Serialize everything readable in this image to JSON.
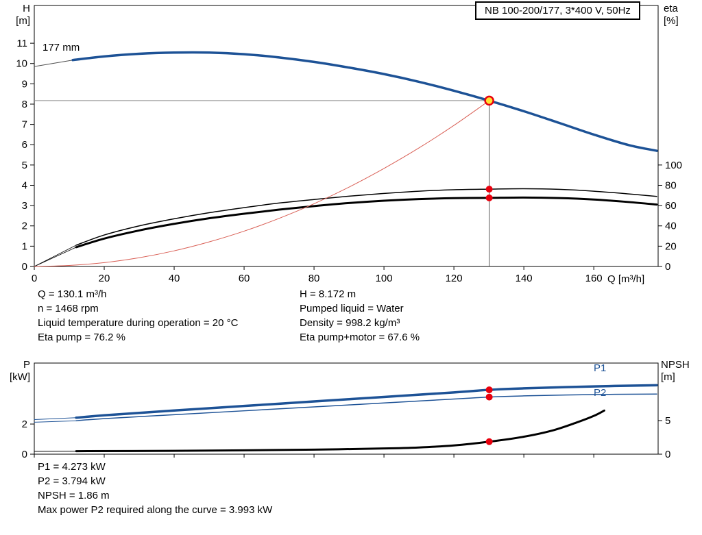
{
  "title_box": {
    "label": "NB 100-200/177, 3*400 V, 50Hz"
  },
  "axis_labels": {
    "head": "H",
    "head_unit": "[m]",
    "eta": "eta",
    "eta_unit": "[%]",
    "flow": "Q [m³/h]",
    "power": "P",
    "power_unit": "[kW]",
    "npsh": "NPSH",
    "npsh_unit": "[m]"
  },
  "impeller_label": "177 mm",
  "curve_labels": {
    "p1": "P1",
    "p2": "P2"
  },
  "colors": {
    "curve_blue": "#1d5296",
    "curve_black": "#000000",
    "system_red": "#d95f55",
    "marker_red": "#e8000d",
    "duty_yellow": "#ffe133",
    "guide_gray": "#8c8c8c"
  },
  "operating_point": {
    "left": [
      "Q = 130.1 m³/h",
      "n = 1468 rpm",
      "Liquid temperature during operation = 20 °C",
      "Eta pump = 76.2 %"
    ],
    "right": [
      "H = 8.172 m",
      "Pumped liquid = Water",
      "Density = 998.2 kg/m³",
      "Eta pump+motor = 67.6 %"
    ]
  },
  "results": [
    "P1 = 4.273 kW",
    "P2 = 3.794 kW",
    "NPSH = 1.86 m",
    "Max power P2 required along the curve = 3.993 kW"
  ],
  "chart_data": [
    {
      "name": "qh-chart",
      "type": "line",
      "title": "NB 100-200/177 QH and efficiency curves",
      "xlabel": "Q [m³/h]",
      "ylabel_left": "H [m]",
      "ylabel_right": "eta [%]",
      "xlim": [
        0,
        178.4
      ],
      "axes": {
        "H": {
          "lim": [
            0,
            12.86
          ]
        },
        "eta": {
          "lim": [
            0,
            257.2
          ]
        }
      },
      "x_tick_labels": true,
      "ticks": {
        "x": [
          0,
          20,
          40,
          60,
          80,
          100,
          120,
          140,
          160
        ],
        "left": {
          "axis": "H",
          "values": [
            0,
            1,
            2,
            3,
            4,
            5,
            6,
            7,
            8,
            9,
            10,
            11
          ]
        },
        "right": {
          "axis": "eta",
          "values": [
            0,
            20,
            40,
            60,
            80,
            100
          ]
        }
      },
      "guides": [
        {
          "name": "duty-hline",
          "type": "hline",
          "axis": "H",
          "y": 8.172,
          "from": 0,
          "to": 130.1,
          "color": "#8c8c8c"
        },
        {
          "name": "duty-vline",
          "type": "vline",
          "axis": "H",
          "x": 130.1,
          "from": 0,
          "to": 8.172,
          "color": "#555555"
        }
      ],
      "series": [
        {
          "name": "head-lead-in",
          "axis": "H",
          "color": "#4d4d4d",
          "width": 1,
          "points": [
            [
              0,
              9.85
            ],
            [
              11,
              10.17
            ]
          ]
        },
        {
          "name": "head-177mm",
          "axis": "H",
          "color": "#1d5296",
          "width": 3.5,
          "points": [
            [
              11,
              10.17
            ],
            [
              20,
              10.35
            ],
            [
              30,
              10.48
            ],
            [
              40,
              10.54
            ],
            [
              50,
              10.54
            ],
            [
              60,
              10.46
            ],
            [
              70,
              10.3
            ],
            [
              80,
              10.08
            ],
            [
              90,
              9.8
            ],
            [
              100,
              9.48
            ],
            [
              110,
              9.1
            ],
            [
              120,
              8.66
            ],
            [
              130.1,
              8.172
            ],
            [
              140,
              7.65
            ],
            [
              150,
              7.08
            ],
            [
              160,
              6.5
            ],
            [
              170,
              5.98
            ],
            [
              178,
              5.7
            ]
          ]
        },
        {
          "name": "eta-pump-lead-in",
          "axis": "eta",
          "color": "#000000",
          "width": 0.8,
          "points": [
            [
              0,
              0
            ],
            [
              12,
              21
            ]
          ]
        },
        {
          "name": "eta-pump",
          "axis": "eta",
          "color": "#000000",
          "width": 1.5,
          "points": [
            [
              12,
              21
            ],
            [
              20,
              31
            ],
            [
              30,
              40
            ],
            [
              40,
              47
            ],
            [
              50,
              53
            ],
            [
              60,
              58
            ],
            [
              70,
              62.5
            ],
            [
              80,
              66
            ],
            [
              90,
              69.3
            ],
            [
              100,
              72
            ],
            [
              110,
              74.2
            ],
            [
              120,
              75.6
            ],
            [
              130.1,
              76.2
            ],
            [
              140,
              76.6
            ],
            [
              150,
              76
            ],
            [
              160,
              74.2
            ],
            [
              170,
              71.5
            ],
            [
              178,
              69
            ]
          ]
        },
        {
          "name": "eta-pump-motor-lead-in",
          "axis": "eta",
          "color": "#000000",
          "width": 0.8,
          "points": [
            [
              0,
              0
            ],
            [
              12,
              19
            ]
          ]
        },
        {
          "name": "eta-pump-motor",
          "axis": "eta",
          "color": "#000000",
          "width": 3,
          "points": [
            [
              12,
              19
            ],
            [
              20,
              27.5
            ],
            [
              30,
              35.5
            ],
            [
              40,
              42
            ],
            [
              50,
              47.5
            ],
            [
              60,
              52
            ],
            [
              70,
              56
            ],
            [
              80,
              59.5
            ],
            [
              90,
              62.5
            ],
            [
              100,
              64.8
            ],
            [
              110,
              66.4
            ],
            [
              120,
              67.3
            ],
            [
              130.1,
              67.6
            ],
            [
              140,
              67.9
            ],
            [
              150,
              67.4
            ],
            [
              160,
              66
            ],
            [
              170,
              63.5
            ],
            [
              178,
              61
            ]
          ]
        },
        {
          "name": "system-curve",
          "axis": "H",
          "color": "#d95f55",
          "width": 1,
          "points": [
            [
              0,
              0
            ],
            [
              10,
              0.05
            ],
            [
              20,
              0.19
            ],
            [
              30,
              0.43
            ],
            [
              40,
              0.77
            ],
            [
              50,
              1.21
            ],
            [
              60,
              1.74
            ],
            [
              70,
              2.37
            ],
            [
              80,
              3.09
            ],
            [
              90,
              3.91
            ],
            [
              100,
              4.83
            ],
            [
              110,
              5.84
            ],
            [
              120,
              6.95
            ],
            [
              130.1,
              8.172
            ]
          ]
        }
      ],
      "markers": [
        {
          "name": "eta-pump-point",
          "axis": "eta",
          "x": 130.1,
          "y": 76.2,
          "r": 5,
          "fill": "#e8000d"
        },
        {
          "name": "eta-pump-motor-point",
          "axis": "eta",
          "x": 130.1,
          "y": 67.6,
          "r": 5,
          "fill": "#e8000d"
        },
        {
          "name": "duty-point",
          "axis": "H",
          "x": 130.1,
          "y": 8.172,
          "r": 6,
          "fill": "#ffe133",
          "stroke": "#e8000d",
          "interactable": "true"
        }
      ]
    },
    {
      "name": "power-npsh-chart",
      "type": "line",
      "title": "Power and NPSH curves",
      "xlabel": "",
      "ylabel_left": "P [kW]",
      "ylabel_right": "NPSH [m]",
      "xlim": [
        0,
        178.4
      ],
      "axes": {
        "P": {
          "lim": [
            0,
            6.05
          ]
        },
        "NPSH": {
          "lim": [
            0,
            13.57
          ]
        }
      },
      "x_tick_labels": false,
      "ticks": {
        "x": [
          0,
          20,
          40,
          60,
          80,
          100,
          120,
          140,
          160
        ],
        "left": {
          "axis": "P",
          "values": [
            0,
            2
          ]
        },
        "right": {
          "axis": "NPSH",
          "values": [
            0,
            5
          ]
        }
      },
      "guides": [],
      "series": [
        {
          "name": "p1-lead-in",
          "axis": "P",
          "color": "#1d5296",
          "width": 1,
          "points": [
            [
              0,
              2.3
            ],
            [
              12,
              2.42
            ]
          ]
        },
        {
          "name": "p1",
          "axis": "P",
          "color": "#1d5296",
          "width": 3.5,
          "points": [
            [
              12,
              2.42
            ],
            [
              20,
              2.58
            ],
            [
              40,
              2.9
            ],
            [
              60,
              3.2
            ],
            [
              80,
              3.5
            ],
            [
              100,
              3.8
            ],
            [
              120,
              4.1
            ],
            [
              130.1,
              4.273
            ],
            [
              140,
              4.37
            ],
            [
              160,
              4.5
            ],
            [
              178,
              4.58
            ]
          ]
        },
        {
          "name": "p2-lead-in",
          "axis": "P",
          "color": "#1d5296",
          "width": 1,
          "points": [
            [
              0,
              2.12
            ],
            [
              12,
              2.22
            ]
          ]
        },
        {
          "name": "p2",
          "axis": "P",
          "color": "#1d5296",
          "width": 1.5,
          "points": [
            [
              12,
              2.22
            ],
            [
              20,
              2.36
            ],
            [
              40,
              2.62
            ],
            [
              60,
              2.88
            ],
            [
              80,
              3.14
            ],
            [
              100,
              3.4
            ],
            [
              120,
              3.66
            ],
            [
              130.1,
              3.794
            ],
            [
              140,
              3.87
            ],
            [
              160,
              3.96
            ],
            [
              178,
              3.99
            ]
          ]
        },
        {
          "name": "npsh-lead-in",
          "axis": "NPSH",
          "color": "#000000",
          "width": 1,
          "points": [
            [
              0,
              0.42
            ],
            [
              12,
              0.45
            ]
          ]
        },
        {
          "name": "npsh",
          "axis": "NPSH",
          "color": "#000000",
          "width": 3,
          "points": [
            [
              12,
              0.45
            ],
            [
              40,
              0.5
            ],
            [
              60,
              0.57
            ],
            [
              80,
              0.68
            ],
            [
              100,
              0.85
            ],
            [
              110,
              1.0
            ],
            [
              120,
              1.3
            ],
            [
              130.1,
              1.86
            ],
            [
              140,
              2.6
            ],
            [
              148,
              3.5
            ],
            [
              155,
              4.7
            ],
            [
              160,
              5.7
            ],
            [
              163,
              6.5
            ]
          ]
        }
      ],
      "markers": [
        {
          "name": "p1-point",
          "axis": "P",
          "x": 130.1,
          "y": 4.273,
          "r": 5,
          "fill": "#e8000d"
        },
        {
          "name": "p2-point",
          "axis": "P",
          "x": 130.1,
          "y": 3.794,
          "r": 5,
          "fill": "#e8000d"
        },
        {
          "name": "npsh-point",
          "axis": "NPSH",
          "x": 130.1,
          "y": 1.86,
          "r": 5,
          "fill": "#e8000d"
        }
      ]
    }
  ]
}
